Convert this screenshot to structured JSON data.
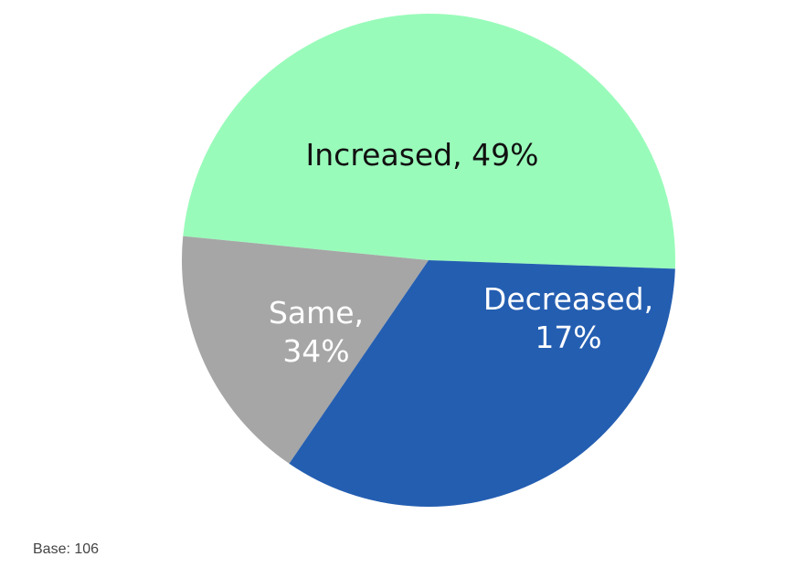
{
  "chart_data": {
    "type": "pie",
    "slices": [
      {
        "label": "Increased",
        "value": 49,
        "display": "Increased, 49%",
        "color": "#99fbba",
        "text_color": "#111111",
        "label_lines": [
          "Increased, 49%"
        ]
      },
      {
        "label": "Decreased",
        "value": 17,
        "display": "Decreased, 17%",
        "color": "#a6a6a6",
        "text_color": "#ffffff",
        "label_lines": [
          "Decreased,",
          "17%"
        ]
      },
      {
        "label": "Same",
        "value": 34,
        "display": "Same, 34%",
        "color": "#245eb1",
        "text_color": "#ffffff",
        "label_lines": [
          "Same,",
          "34%"
        ]
      }
    ],
    "unit": "%",
    "legend": "none"
  },
  "footnote": {
    "text": "Base: 106"
  }
}
